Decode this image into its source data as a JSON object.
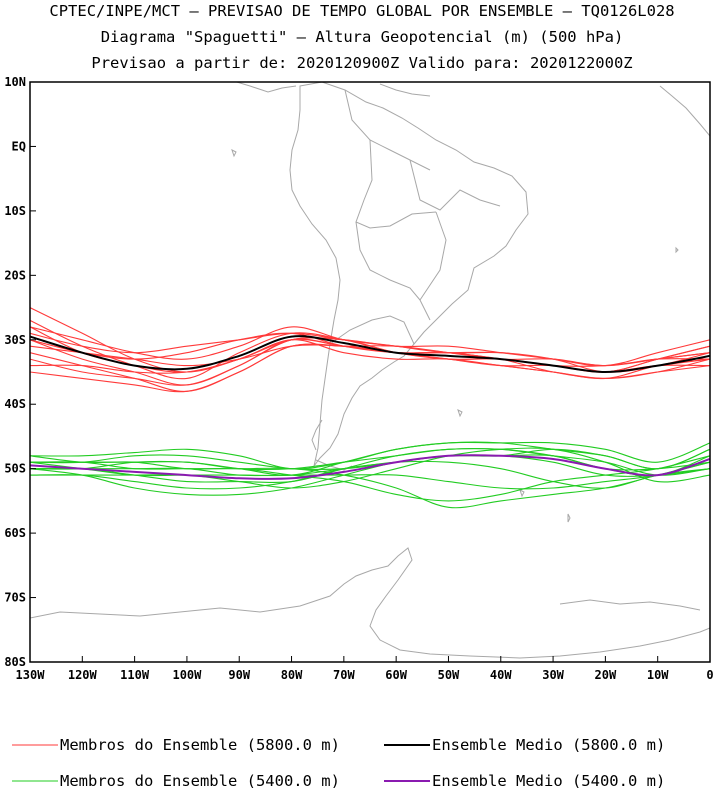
{
  "title": {
    "line1": "CPTEC/INPE/MCT – PREVISAO DE TEMPO GLOBAL POR ENSEMBLE – TQ0126L028",
    "line2": "Diagrama \"Spaguetti\" – Altura Geopotencial (m) (500 hPa)",
    "line3": "Previsao a partir de: 2020120900Z  Valido para: 2020122000Z"
  },
  "colors": {
    "member_5800": "#ff3a3a",
    "mean_5800": "#000000",
    "member_5400": "#22cc22",
    "mean_5400": "#8a1ab0",
    "coast": "#a8a8a8"
  },
  "chart_data": {
    "type": "line",
    "title": "Diagrama \"Spaguetti\" – Altura Geopotencial (m) (500 hPa)",
    "xlabel": "",
    "ylabel": "",
    "xlim": [
      -130,
      0
    ],
    "ylim": [
      -80,
      10
    ],
    "x_ticks": [
      {
        "v": -130,
        "label": "130W"
      },
      {
        "v": -120,
        "label": "120W"
      },
      {
        "v": -110,
        "label": "110W"
      },
      {
        "v": -100,
        "label": "100W"
      },
      {
        "v": -90,
        "label": "90W"
      },
      {
        "v": -80,
        "label": "80W"
      },
      {
        "v": -70,
        "label": "70W"
      },
      {
        "v": -60,
        "label": "60W"
      },
      {
        "v": -50,
        "label": "50W"
      },
      {
        "v": -40,
        "label": "40W"
      },
      {
        "v": -30,
        "label": "30W"
      },
      {
        "v": -20,
        "label": "20W"
      },
      {
        "v": -10,
        "label": "10W"
      },
      {
        "v": 0,
        "label": "0"
      }
    ],
    "y_ticks": [
      {
        "v": 10,
        "label": "10N"
      },
      {
        "v": 0,
        "label": "EQ"
      },
      {
        "v": -10,
        "label": "10S"
      },
      {
        "v": -20,
        "label": "20S"
      },
      {
        "v": -30,
        "label": "30S"
      },
      {
        "v": -40,
        "label": "40S"
      },
      {
        "v": -50,
        "label": "50S"
      },
      {
        "v": -60,
        "label": "60S"
      },
      {
        "v": -70,
        "label": "70S"
      },
      {
        "v": -80,
        "label": "80S"
      }
    ],
    "x": [
      -130,
      -120,
      -110,
      -100,
      -90,
      -80,
      -70,
      -60,
      -50,
      -40,
      -30,
      -20,
      -10,
      0
    ],
    "series": [
      {
        "name": "Membros do Ensemble (5800.0 m)",
        "role": "member",
        "level": 5800,
        "values": [
          -25,
          -29,
          -33,
          -35,
          -33,
          -30,
          -31,
          -32,
          -32,
          -33,
          -34,
          -35,
          -34,
          -33
        ]
      },
      {
        "name": "Membros do Ensemble (5800.0 m)",
        "role": "member",
        "level": 5800,
        "values": [
          -27,
          -31,
          -34,
          -36,
          -32,
          -29,
          -30,
          -32,
          -33,
          -33,
          -34,
          -35,
          -33,
          -31
        ]
      },
      {
        "name": "Membros do Ensemble (5800.0 m)",
        "role": "member",
        "level": 5800,
        "values": [
          -28,
          -30,
          -32,
          -33,
          -31,
          -28,
          -30,
          -31,
          -32,
          -32,
          -33,
          -34,
          -33,
          -32
        ]
      },
      {
        "name": "Membros do Ensemble (5800.0 m)",
        "role": "member",
        "level": 5800,
        "values": [
          -30,
          -33,
          -35,
          -37,
          -34,
          -30,
          -30,
          -31,
          -31,
          -32,
          -33,
          -34,
          -32,
          -30
        ]
      },
      {
        "name": "Membros do Ensemble (5800.0 m)",
        "role": "member",
        "level": 5800,
        "values": [
          -31,
          -32,
          -33,
          -34,
          -33,
          -31,
          -31,
          -32,
          -33,
          -34,
          -35,
          -36,
          -34,
          -33
        ]
      },
      {
        "name": "Membros do Ensemble (5800.0 m)",
        "role": "member",
        "level": 5800,
        "values": [
          -32,
          -34,
          -36,
          -38,
          -35,
          -31,
          -31,
          -32,
          -32,
          -33,
          -34,
          -35,
          -34,
          -34
        ]
      },
      {
        "name": "Membros do Ensemble (5800.0 m)",
        "role": "member",
        "level": 5800,
        "values": [
          -33,
          -35,
          -36,
          -37,
          -34,
          -30,
          -31,
          -32,
          -33,
          -33,
          -34,
          -34,
          -33,
          -32
        ]
      },
      {
        "name": "Membros do Ensemble (5800.0 m)",
        "role": "member",
        "level": 5800,
        "values": [
          -34,
          -34,
          -35,
          -35,
          -33,
          -30,
          -32,
          -33,
          -33,
          -34,
          -35,
          -36,
          -35,
          -34
        ]
      },
      {
        "name": "Membros do Ensemble (5800.0 m)",
        "role": "member",
        "level": 5800,
        "values": [
          -35,
          -36,
          -37,
          -38,
          -35,
          -31,
          -31,
          -31,
          -32,
          -33,
          -33,
          -34,
          -33,
          -33
        ]
      },
      {
        "name": "Membros do Ensemble (5800.0 m)",
        "role": "member",
        "level": 5800,
        "values": [
          -29,
          -31,
          -32,
          -31,
          -30,
          -29,
          -30,
          -31,
          -32,
          -33,
          -35,
          -36,
          -35,
          -33
        ]
      },
      {
        "name": "Membros do Ensemble (5800.0 m)",
        "role": "member",
        "level": 5800,
        "values": [
          -30,
          -32,
          -33,
          -32,
          -30,
          -29,
          -31,
          -32,
          -32,
          -32,
          -33,
          -35,
          -34,
          -32
        ]
      },
      {
        "name": "Membros do Ensemble (5800.0 m)",
        "role": "member",
        "level": 5800,
        "values": [
          -28,
          -32,
          -34,
          -35,
          -33,
          -30,
          -30,
          -32,
          -33,
          -34,
          -34,
          -35,
          -33,
          -31
        ]
      },
      {
        "name": "Ensemble Medio (5800.0 m)",
        "role": "mean",
        "level": 5800,
        "values": [
          -29.5,
          -32,
          -34,
          -34.5,
          -32.5,
          -29.5,
          -30.5,
          -32,
          -32.5,
          -33,
          -34,
          -35,
          -34,
          -32.5
        ]
      },
      {
        "name": "Membros do Ensemble (5400.0 m)",
        "role": "member",
        "level": 5400,
        "values": [
          -48,
          -48,
          -47.5,
          -47,
          -48,
          -50,
          -49,
          -47,
          -46,
          -46,
          -46,
          -47,
          -49,
          -46
        ]
      },
      {
        "name": "Membros do Ensemble (5400.0 m)",
        "role": "member",
        "level": 5400,
        "values": [
          -49,
          -49,
          -49,
          -49,
          -50,
          -51,
          -49,
          -47,
          -46,
          -46,
          -47,
          -48,
          -50,
          -47
        ]
      },
      {
        "name": "Membros do Ensemble (5400.0 m)",
        "role": "member",
        "level": 5400,
        "values": [
          -50,
          -50,
          -51,
          -52,
          -52,
          -52,
          -50,
          -48,
          -47,
          -47,
          -48,
          -50,
          -51,
          -48
        ]
      },
      {
        "name": "Membros do Ensemble (5400.0 m)",
        "role": "member",
        "level": 5400,
        "values": [
          -51,
          -51,
          -52,
          -53,
          -53,
          -52,
          -50,
          -49,
          -48,
          -48,
          -48,
          -50,
          -50,
          -49
        ]
      },
      {
        "name": "Membros do Ensemble (5400.0 m)",
        "role": "member",
        "level": 5400,
        "values": [
          -50,
          -51,
          -53,
          -54,
          -54,
          -53,
          -51,
          -49,
          -48,
          -48,
          -49,
          -51,
          -51,
          -50
        ]
      },
      {
        "name": "Membros do Ensemble (5400.0 m)",
        "role": "member",
        "level": 5400,
        "values": [
          -49,
          -50,
          -51,
          -51,
          -51,
          -51,
          -50,
          -49,
          -49,
          -50,
          -52,
          -53,
          -51,
          -50
        ]
      },
      {
        "name": "Membros do Ensemble (5400.0 m)",
        "role": "member",
        "level": 5400,
        "values": [
          -49,
          -49,
          -50,
          -50,
          -50,
          -50,
          -51,
          -53,
          -56,
          -55,
          -54,
          -53,
          -51,
          -49
        ]
      },
      {
        "name": "Membros do Ensemble (5400.0 m)",
        "role": "member",
        "level": 5400,
        "values": [
          -48,
          -49,
          -49,
          -50,
          -50,
          -51,
          -52,
          -54,
          -55,
          -54,
          -52,
          -51,
          -50,
          -48
        ]
      },
      {
        "name": "Membros do Ensemble (5400.0 m)",
        "role": "member",
        "level": 5400,
        "values": [
          -50,
          -50,
          -50,
          -50,
          -51,
          -51,
          -51,
          -51,
          -52,
          -53,
          -53,
          -52,
          -51,
          -49
        ]
      },
      {
        "name": "Membros do Ensemble (5400.0 m)",
        "role": "member",
        "level": 5400,
        "values": [
          -49,
          -49,
          -48,
          -48,
          -49,
          -50,
          -50,
          -49,
          -48,
          -48,
          -47,
          -48,
          -50,
          -47
        ]
      },
      {
        "name": "Membros do Ensemble (5400.0 m)",
        "role": "member",
        "level": 5400,
        "values": [
          -51,
          -51,
          -51,
          -51,
          -52,
          -53,
          -52,
          -50,
          -48,
          -47,
          -47,
          -49,
          -52,
          -51
        ]
      },
      {
        "name": "Membros do Ensemble (5400.0 m)",
        "role": "member",
        "level": 5400,
        "values": [
          -50,
          -50,
          -49,
          -49,
          -50,
          -50,
          -49,
          -48,
          -47,
          -47,
          -48,
          -49,
          -51,
          -50
        ]
      },
      {
        "name": "Ensemble Medio (5400.0 m)",
        "role": "mean",
        "level": 5400,
        "values": [
          -49.5,
          -50,
          -50.5,
          -51,
          -51.5,
          -51.5,
          -50.5,
          -49,
          -48,
          -48,
          -48.5,
          -50,
          -51,
          -48.5
        ]
      }
    ],
    "legend": {
      "position": "bottom",
      "items": [
        {
          "label": "Membros do Ensemble (5800.0 m)",
          "color_key": "member_5800"
        },
        {
          "label": "Ensemble Medio (5800.0 m)",
          "color_key": "mean_5800"
        },
        {
          "label": "Membros do Ensemble (5400.0 m)",
          "color_key": "member_5400"
        },
        {
          "label": "Ensemble Medio (5400.0 m)",
          "color_key": "mean_5400"
        }
      ]
    }
  }
}
